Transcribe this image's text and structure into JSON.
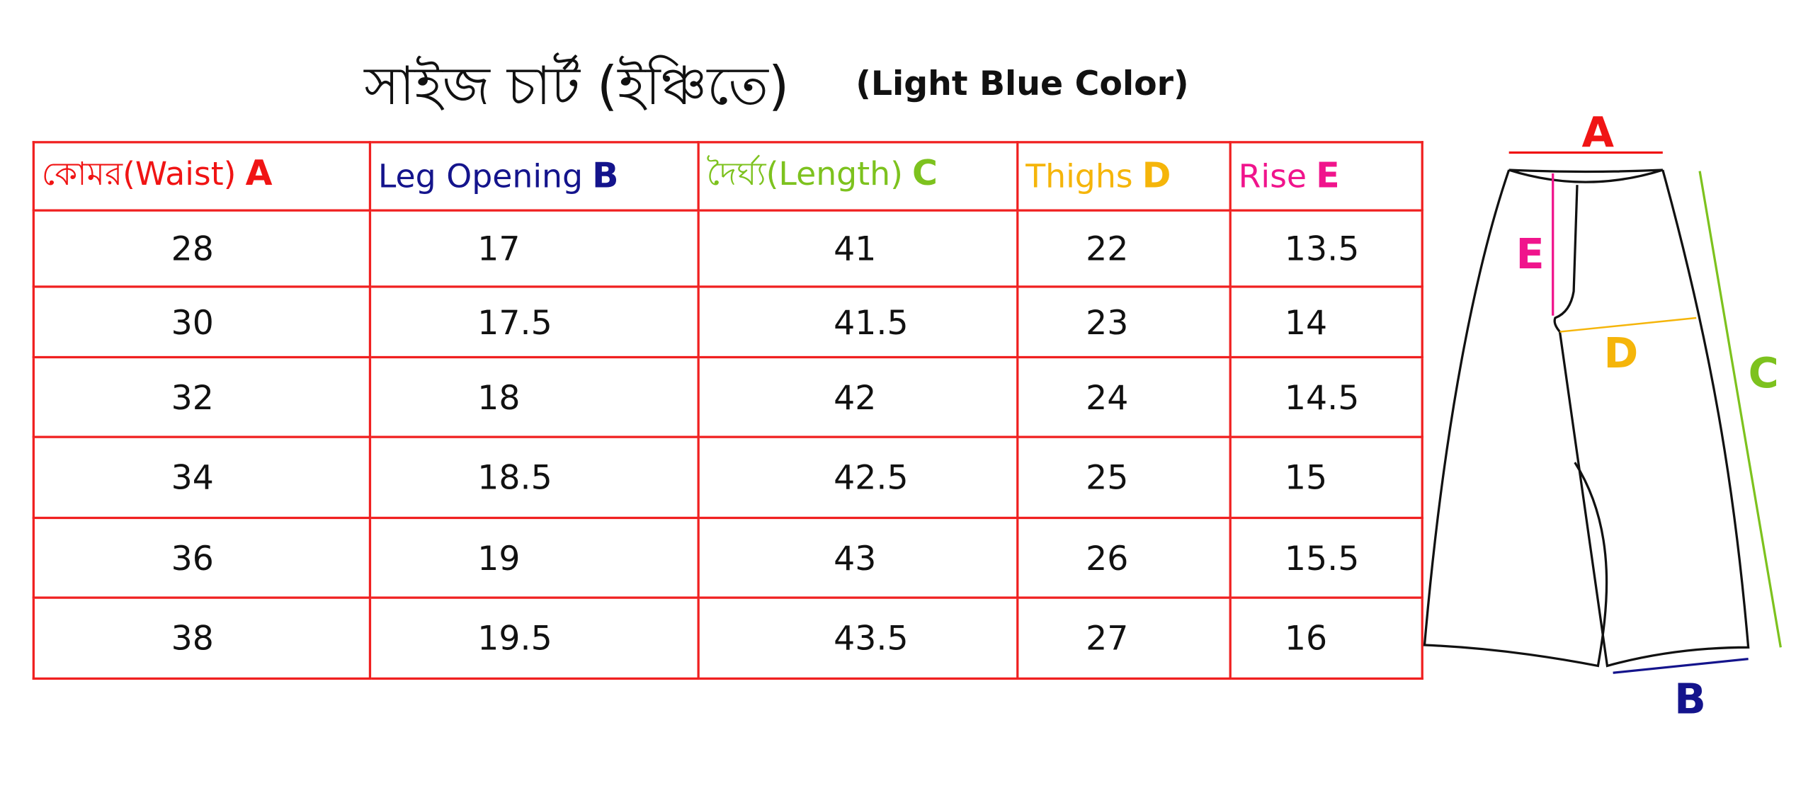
{
  "title": "সাইজ চার্ট (ইঞ্চিতে)",
  "subtitle": "(Light Blue Color)",
  "columns": [
    {
      "label": "কোমর(Waist)",
      "letter": "A",
      "color": "#f01414"
    },
    {
      "label": "Leg Opening",
      "letter": "B",
      "color": "#14148c"
    },
    {
      "label": "দৈর্ঘ্য(Length)",
      "letter": "C",
      "color": "#7dc21e"
    },
    {
      "label": "Thighs",
      "letter": "D",
      "color": "#f5b50a"
    },
    {
      "label": "Rise",
      "letter": "E",
      "color": "#f0148c"
    }
  ],
  "rows": [
    [
      "28",
      "17",
      "41",
      "22",
      "13.5"
    ],
    [
      "30",
      "17.5",
      "41.5",
      "23",
      "14"
    ],
    [
      "32",
      "18",
      "42",
      "24",
      "14.5"
    ],
    [
      "34",
      "18.5",
      "42.5",
      "25",
      "15"
    ],
    [
      "36",
      "19",
      "43",
      "26",
      "15.5"
    ],
    [
      "38",
      "19.5",
      "43.5",
      "27",
      "16"
    ]
  ],
  "diagram": {
    "labels": {
      "a": "A",
      "b": "B",
      "c": "C",
      "d": "D",
      "e": "E"
    }
  }
}
